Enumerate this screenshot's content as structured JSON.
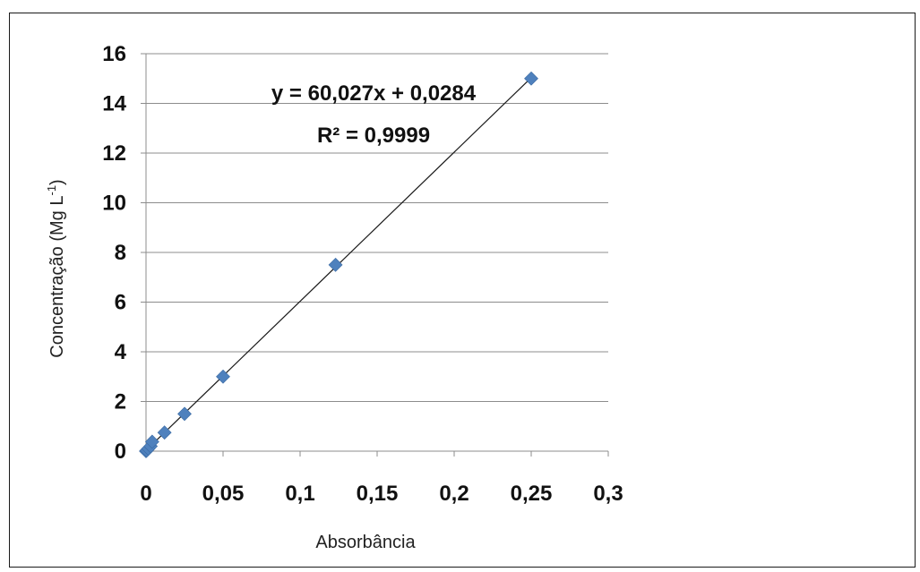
{
  "chart_data": {
    "type": "scatter",
    "title": "",
    "xlabel": "Absorbância",
    "ylabel_main": "Concentração (Mg L",
    "ylabel_sup": "-1",
    "ylabel_end": ")",
    "xlim": [
      0,
      0.3
    ],
    "ylim": [
      0,
      16
    ],
    "x_ticks": [
      0,
      0.05,
      0.1,
      0.15,
      0.2,
      0.25,
      0.3
    ],
    "x_tick_labels": [
      "0",
      "0,05",
      "0,1",
      "0,15",
      "0,2",
      "0,25",
      "0,3"
    ],
    "y_ticks": [
      0,
      2,
      4,
      6,
      8,
      10,
      12,
      14,
      16
    ],
    "y_tick_labels": [
      "0",
      "2",
      "4",
      "6",
      "8",
      "10",
      "12",
      "14",
      "16"
    ],
    "grid": "horizontal",
    "legend": "none",
    "series": [
      {
        "color": "#4f81bd",
        "marker": "diamond",
        "points": [
          {
            "x": 0,
            "y": 0
          },
          {
            "x": 0.0005,
            "y": 0.03
          },
          {
            "x": 0.0015,
            "y": 0.1
          },
          {
            "x": 0.003,
            "y": 0.2
          },
          {
            "x": 0.004,
            "y": 0.38
          },
          {
            "x": 0.012,
            "y": 0.75
          },
          {
            "x": 0.025,
            "y": 1.5
          },
          {
            "x": 0.05,
            "y": 3
          },
          {
            "x": 0.123,
            "y": 7.5
          },
          {
            "x": 0.25,
            "y": 15
          }
        ]
      }
    ],
    "trendline": {
      "type": "linear",
      "slope": 60.027,
      "intercept": 0.0284,
      "color": "#1a1a1a",
      "equation": "y = 60,027x + 0,0284",
      "r2_label": "R² = 0,9999"
    }
  }
}
